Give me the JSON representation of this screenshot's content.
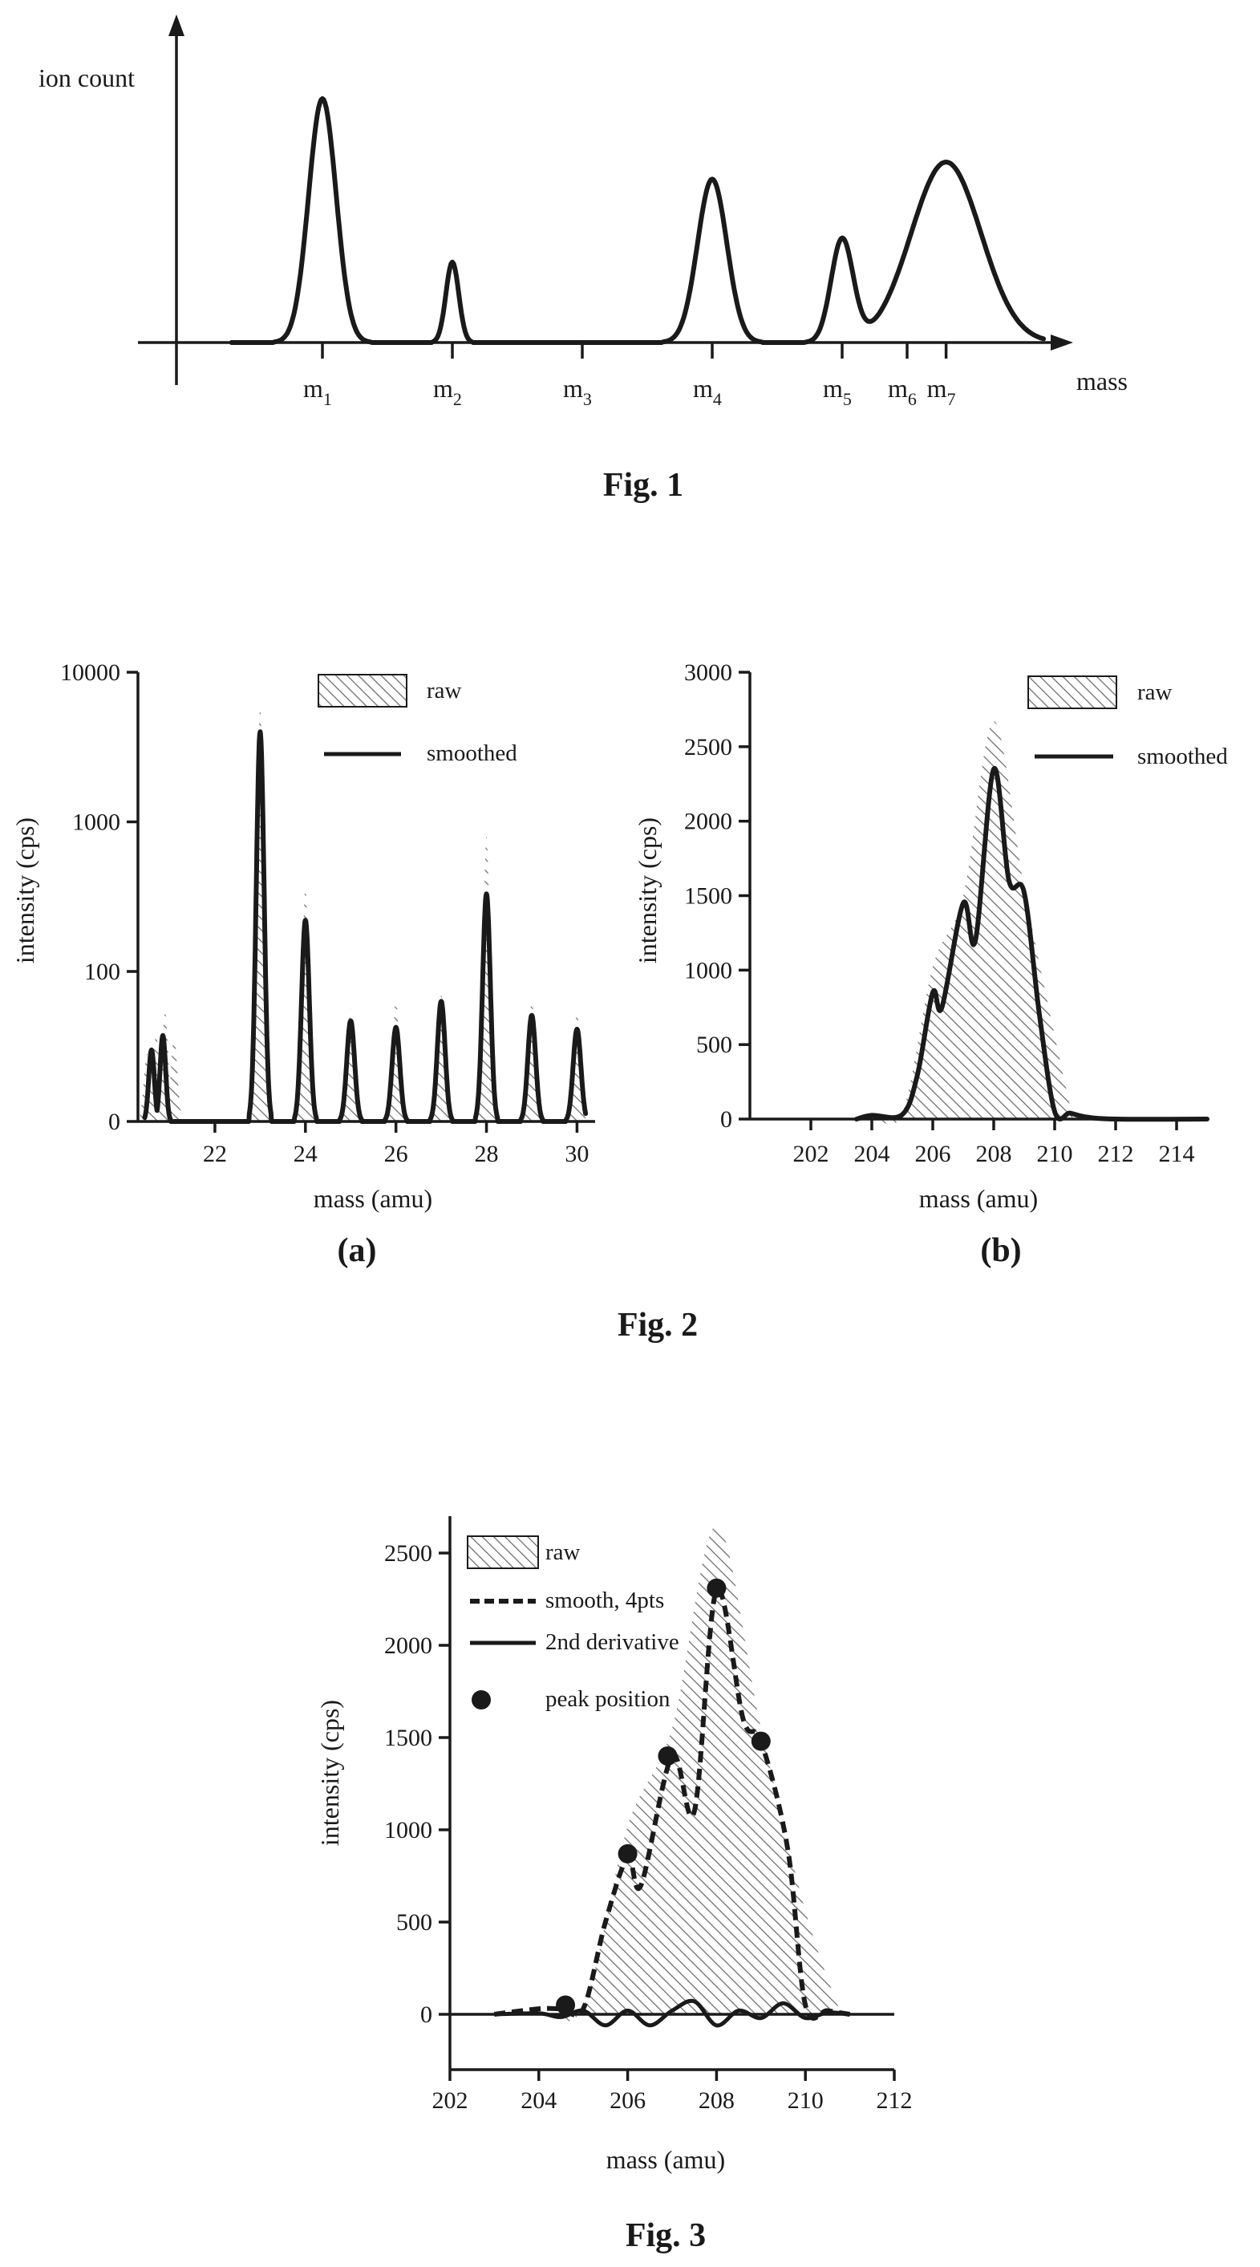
{
  "chart_data": [
    {
      "id": "fig1",
      "type": "line",
      "caption": "Fig. 1",
      "ylabel": "ion count",
      "xlabel": "mass",
      "tick_labels": [
        {
          "base": "m",
          "sub": "1"
        },
        {
          "base": "m",
          "sub": "2"
        },
        {
          "base": "m",
          "sub": "3"
        },
        {
          "base": "m",
          "sub": "4"
        },
        {
          "base": "m",
          "sub": "5"
        },
        {
          "base": "m",
          "sub": "6"
        },
        {
          "base": "m",
          "sub": "7"
        }
      ],
      "tick_positions": [
        1,
        2,
        3,
        4,
        5,
        5.5,
        5.8
      ],
      "xlim": [
        -0.3,
        7.3
      ],
      "ylim": [
        0,
        1.1
      ],
      "peaks": [
        {
          "center": 1.0,
          "height": 1.0,
          "width": 0.15
        },
        {
          "center": 2.0,
          "height": 0.33,
          "width": 0.07
        },
        {
          "center": 4.0,
          "height": 0.67,
          "width": 0.16
        },
        {
          "center": 5.0,
          "height": 0.42,
          "width": 0.12
        },
        {
          "center": 5.8,
          "height": 0.74,
          "width": 0.38
        }
      ]
    },
    {
      "id": "fig2a",
      "type": "area",
      "panel_label": "(a)",
      "xlabel": "mass (amu)",
      "ylabel": "intensity (cps)",
      "xlim": [
        20.3,
        30.4
      ],
      "ylim": [
        0,
        4
      ],
      "y_scale": "log",
      "xticks": [
        22,
        24,
        26,
        28,
        30
      ],
      "yticks": [
        {
          "value": 0,
          "label": "0"
        },
        {
          "value": 100,
          "label": "100"
        },
        {
          "value": 1000,
          "label": "1000"
        },
        {
          "value": 10000,
          "label": "10000"
        }
      ],
      "legend": {
        "position": "top-right",
        "entries": [
          "raw",
          "smoothed"
        ]
      },
      "series": [
        {
          "name": "raw",
          "x": [
            20.5,
            20.7,
            20.9,
            21.1,
            23,
            24,
            25,
            26,
            27,
            28,
            29,
            30
          ],
          "values": [
            8,
            14,
            28,
            13,
            6000,
            360,
            32,
            42,
            48,
            800,
            40,
            28
          ]
        },
        {
          "name": "smoothed",
          "x": [
            20.6,
            20.85,
            23,
            24,
            25,
            26,
            27,
            28,
            29,
            30
          ],
          "values": [
            9,
            14,
            4000,
            220,
            22,
            18,
            40,
            330,
            26,
            17
          ]
        }
      ]
    },
    {
      "id": "fig2b",
      "type": "area",
      "panel_label": "(b)",
      "xlabel": "mass (amu)",
      "ylabel": "intensity (cps)",
      "xlim": [
        200,
        215
      ],
      "ylim": [
        0,
        3000
      ],
      "xticks": [
        202,
        204,
        206,
        208,
        210,
        212,
        214
      ],
      "yticks": [
        0,
        500,
        1000,
        1500,
        2000,
        2500,
        3000
      ],
      "legend": {
        "position": "top-right",
        "entries": [
          "raw",
          "smoothed"
        ]
      },
      "series": [
        {
          "name": "raw",
          "x": [
            204,
            205,
            206,
            207,
            208,
            209,
            210
          ],
          "values": [
            20,
            40,
            1020,
            1500,
            2670,
            1550,
            560
          ]
        },
        {
          "name": "smoothed",
          "x": [
            203.5,
            204,
            205,
            205.5,
            206,
            206.3,
            207,
            207.4,
            208,
            208.5,
            209,
            209.5,
            210,
            210.5,
            211,
            212,
            215
          ],
          "values": [
            0,
            25,
            30,
            300,
            850,
            750,
            1450,
            1200,
            2350,
            1600,
            1520,
            700,
            50,
            40,
            15,
            0,
            0
          ]
        }
      ]
    },
    {
      "id": "fig3",
      "type": "area",
      "caption": "Fig. 3",
      "xlabel": "mass (amu)",
      "ylabel": "intensity (cps)",
      "xlim": [
        202,
        212
      ],
      "ylim": [
        -300,
        2700
      ],
      "xticks": [
        202,
        204,
        206,
        208,
        210,
        212
      ],
      "yticks": [
        0,
        500,
        1000,
        1500,
        2000,
        2500
      ],
      "legend": {
        "position": "top-left",
        "entries": [
          "raw",
          "smooth, 4pts",
          "2nd derivative",
          "peak position"
        ]
      },
      "series": [
        {
          "name": "raw",
          "x": [
            204,
            205,
            206,
            207,
            208,
            209,
            210
          ],
          "values": [
            20,
            40,
            1020,
            1550,
            2650,
            1550,
            560
          ]
        },
        {
          "name": "smooth, 4pts",
          "x": [
            203,
            204,
            204.5,
            205,
            205.5,
            206,
            206.3,
            207,
            207.5,
            208,
            208.6,
            209,
            209.6,
            210,
            210.5,
            211
          ],
          "values": [
            0,
            30,
            30,
            30,
            500,
            850,
            700,
            1400,
            1100,
            2300,
            1600,
            1480,
            900,
            50,
            20,
            0
          ]
        },
        {
          "name": "2nd derivative",
          "x": [
            203,
            204,
            204.5,
            205,
            205.5,
            206,
            206.5,
            207,
            207.5,
            208,
            208.5,
            209,
            209.5,
            210,
            210.5,
            211
          ],
          "values": [
            0,
            5,
            -15,
            20,
            -60,
            20,
            -60,
            20,
            70,
            -60,
            20,
            -20,
            60,
            -20,
            10,
            0
          ]
        },
        {
          "name": "peak position",
          "x": [
            204.6,
            206,
            206.9,
            208,
            209
          ],
          "values": [
            50,
            870,
            1400,
            2310,
            1480
          ]
        }
      ]
    }
  ],
  "fig2_caption": "Fig. 2"
}
